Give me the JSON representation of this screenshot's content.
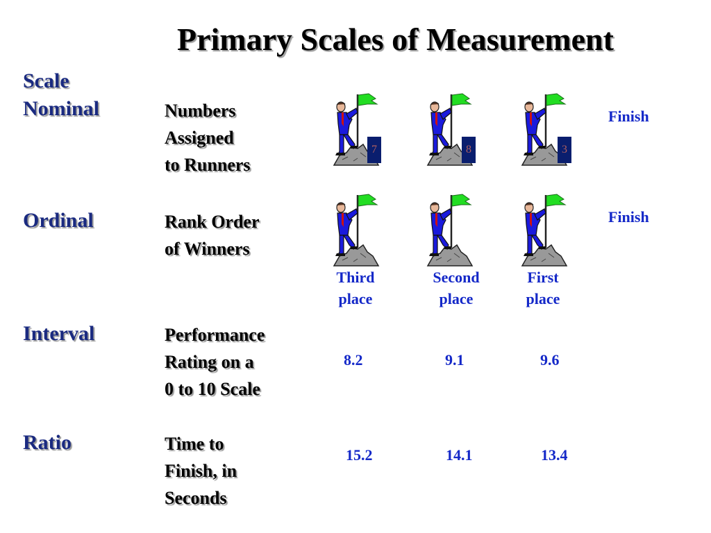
{
  "title": "Primary Scales of Measurement",
  "header_label": "Scale",
  "finish_label": "Finish",
  "rows": [
    {
      "scale": "Nominal",
      "description": [
        "Numbers",
        "Assigned",
        "to Runners"
      ],
      "runner_numbers": [
        "7",
        "8",
        "3"
      ]
    },
    {
      "scale": "Ordinal",
      "description": [
        "Rank Order",
        "of Winners"
      ],
      "places": [
        {
          "line1": "Third",
          "line2": "place"
        },
        {
          "line1": "Second",
          "line2": "place"
        },
        {
          "line1": "First",
          "line2": "place"
        }
      ]
    },
    {
      "scale": "Interval",
      "description": [
        "Performance",
        "Rating on a",
        "0 to 10 Scale"
      ],
      "values": [
        "8.2",
        "9.1",
        "9.6"
      ]
    },
    {
      "scale": "Ratio",
      "description": [
        "Time to",
        "Finish, in",
        "Seconds"
      ],
      "values": [
        "15.2",
        "14.1",
        "13.4"
      ]
    }
  ],
  "colors": {
    "scale_label": "#1a2a80",
    "value_text": "#1428c8",
    "flag": "#22dd22",
    "suit": "#1a1adc",
    "rock": "#999999",
    "number_box": "#0a1e6e"
  },
  "icons": [
    "runner-with-flag-icon"
  ]
}
